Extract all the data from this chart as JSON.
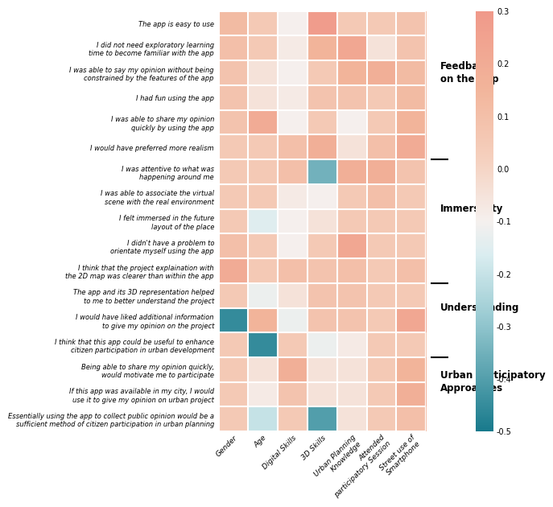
{
  "rows": [
    "The app is easy to use",
    "I did not need exploratory learning\ntime to become familiar with the app",
    "I was able to say my opinion without being\nconstrained by the features of the app",
    "I had fun using the app",
    "I was able to share my opinion\nquickly by using the app",
    "I would have preferred more realism",
    "I was attentive to what was\nhappening around me",
    "I was able to associate the virtual\nscene with the real environment",
    "I felt immersed in the future\nlayout of the place",
    "I didn't have a problem to\norientate myself using the app",
    "I think that the project explaination with\nthe 2D map was clearer than within the app",
    "The app and its 3D representation helped\nto me to better understand the project",
    "I would have liked additional information\nto give my opinion on the project",
    "I think that this app could be useful to enhance\ncitizen participation in urban development",
    "Being able to share my opinion quickly,\nwould motivate me to participate",
    "If this app was available in my city, I would\nuse it to give my opinion on urban project",
    "Essentially using the app to collect public opinion would be a\nsufficient method of citizen participation in urban planning"
  ],
  "cols": [
    "Gender",
    "Age",
    "Digital Skills",
    "3D Skills",
    "Urban Planning\nKnowledge",
    "Attended\nparticipatory Session",
    "Street use of\nSmartphone"
  ],
  "values": [
    [
      0.12,
      0.05,
      -0.1,
      0.28,
      0.05,
      0.05,
      0.08
    ],
    [
      0.1,
      0.05,
      -0.08,
      0.15,
      0.22,
      -0.05,
      0.08
    ],
    [
      0.08,
      -0.05,
      -0.1,
      0.05,
      0.15,
      0.18,
      0.12
    ],
    [
      0.08,
      -0.05,
      -0.08,
      0.08,
      0.08,
      0.05,
      0.12
    ],
    [
      0.08,
      0.2,
      -0.1,
      0.05,
      -0.1,
      0.05,
      0.15
    ],
    [
      0.05,
      0.05,
      0.1,
      0.18,
      -0.05,
      0.1,
      0.2
    ],
    [
      0.05,
      0.05,
      0.1,
      -0.35,
      0.18,
      0.18,
      0.08
    ],
    [
      0.05,
      0.05,
      -0.08,
      -0.1,
      0.05,
      0.1,
      0.05
    ],
    [
      0.05,
      -0.15,
      -0.1,
      -0.05,
      0.05,
      0.05,
      0.05
    ],
    [
      0.1,
      0.05,
      -0.1,
      0.05,
      0.22,
      0.05,
      0.05
    ],
    [
      0.2,
      0.05,
      0.1,
      0.08,
      0.1,
      0.05,
      0.1
    ],
    [
      0.05,
      -0.12,
      -0.05,
      0.08,
      0.08,
      0.05,
      0.05
    ],
    [
      -0.45,
      0.15,
      -0.12,
      0.08,
      0.08,
      0.05,
      0.22
    ],
    [
      0.05,
      -0.45,
      0.05,
      -0.12,
      -0.08,
      0.05,
      0.05
    ],
    [
      0.05,
      -0.05,
      0.18,
      -0.05,
      -0.05,
      0.05,
      0.15
    ],
    [
      0.05,
      -0.08,
      0.08,
      -0.05,
      -0.05,
      0.05,
      0.18
    ],
    [
      0.05,
      -0.2,
      0.05,
      -0.4,
      -0.05,
      0.05,
      0.1
    ]
  ],
  "section_labels": {
    "Feedback\non the App": 2.0,
    "Immersivity": 7.5,
    "Understanding": 11.5,
    "Urban Participatory\nApproaches": 14.5
  },
  "divider_rows": [
    5.5,
    10.5,
    13.5
  ],
  "vmin": -0.5,
  "vmax": 0.3,
  "colorbar_ticks": [
    0.3,
    0.2,
    0.1,
    0.0,
    -0.1,
    -0.2,
    -0.3,
    -0.4,
    -0.5
  ]
}
